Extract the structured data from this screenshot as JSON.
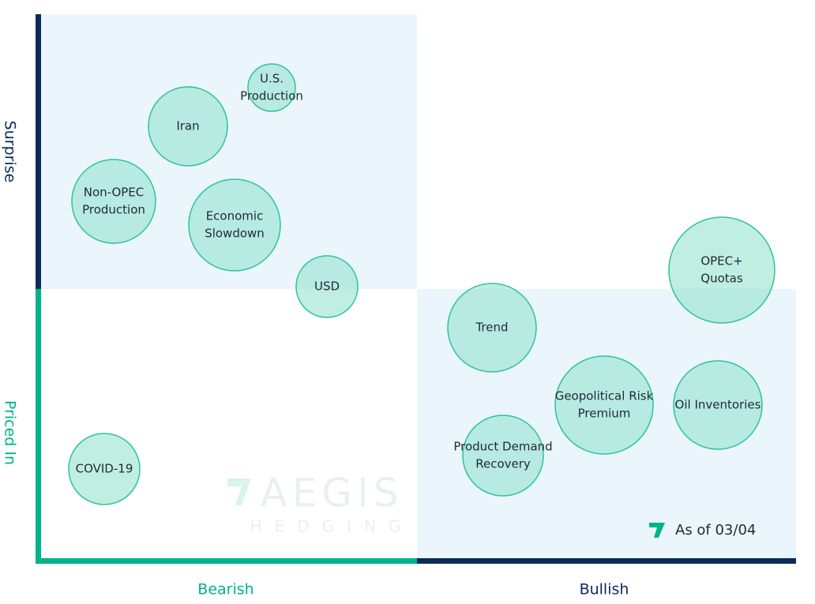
{
  "axes": {
    "y_top": "Surprise",
    "y_bottom": "Priced In",
    "x_left": "Bearish",
    "x_right": "Bullish"
  },
  "nodes": [
    {
      "label": [
        "U.S.",
        "Production"
      ]
    },
    {
      "label": [
        "Iran"
      ]
    },
    {
      "label": [
        "Non-OPEC",
        "Production"
      ]
    },
    {
      "label": [
        "Economic",
        "Slowdown"
      ]
    },
    {
      "label": [
        "USD"
      ]
    },
    {
      "label": [
        "OPEC+",
        "Quotas"
      ]
    },
    {
      "label": [
        "Trend"
      ]
    },
    {
      "label": [
        "Geopolitical Risk",
        "Premium"
      ]
    },
    {
      "label": [
        "Oil Inventories"
      ]
    },
    {
      "label": [
        "Product Demand",
        "Recovery"
      ]
    },
    {
      "label": [
        "COVID-19"
      ]
    }
  ],
  "watermark": {
    "brand": "AEGIS",
    "sub": "HEDGING"
  },
  "as_of": "As of 03/04"
}
